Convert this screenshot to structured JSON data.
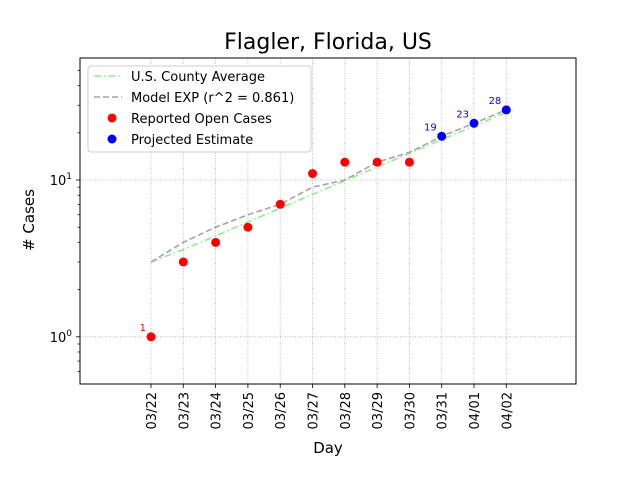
{
  "chart_data": {
    "type": "line",
    "title": "Flagler, Florida, US",
    "xlabel": "Day",
    "ylabel": "# Cases",
    "yscale": "log",
    "ylim": [
      0.5,
      60
    ],
    "y_ticks": [
      {
        "value": 1,
        "base": "10",
        "exp": "0"
      },
      {
        "value": 10,
        "base": "10",
        "exp": "1"
      }
    ],
    "categories": [
      "03/22",
      "03/23",
      "03/24",
      "03/25",
      "03/26",
      "03/27",
      "03/28",
      "03/29",
      "03/30",
      "03/31",
      "04/01",
      "04/02"
    ],
    "grid": true,
    "legend_position": "top-left",
    "series": [
      {
        "name": "U.S. County Average",
        "style": "dash-dot",
        "color": "#90ee90",
        "values": [
          3.0,
          3.6,
          4.4,
          5.4,
          6.6,
          8.1,
          9.9,
          12.1,
          14.8,
          18.1,
          22.1,
          27.0
        ]
      },
      {
        "name": "Model EXP (r^2 = 0.861)",
        "style": "dashed",
        "color": "#aaa0a8",
        "values": [
          3.0,
          4.0,
          5.0,
          6.0,
          7.0,
          9.0,
          10.0,
          13.0,
          15.0,
          19.0,
          23.0,
          28.0
        ]
      },
      {
        "name": "Reported Open Cases",
        "style": "points",
        "color": "#ff0000",
        "values": [
          1,
          3,
          4,
          5,
          7,
          11,
          13,
          13,
          13,
          null,
          null,
          null
        ]
      },
      {
        "name": "Projected Estimate",
        "style": "points",
        "color": "#0000ff",
        "values": [
          null,
          null,
          null,
          null,
          null,
          null,
          null,
          null,
          null,
          19,
          23,
          28
        ]
      }
    ],
    "annotations": [
      {
        "category": "03/22",
        "value": 1,
        "text": "1",
        "color": "#ff0000"
      },
      {
        "category": "03/31",
        "value": 19,
        "text": "19",
        "color": "#0000ff"
      },
      {
        "category": "04/01",
        "value": 23,
        "text": "23",
        "color": "#0000ff"
      },
      {
        "category": "04/02",
        "value": 28,
        "text": "28",
        "color": "#0000ff"
      }
    ]
  }
}
